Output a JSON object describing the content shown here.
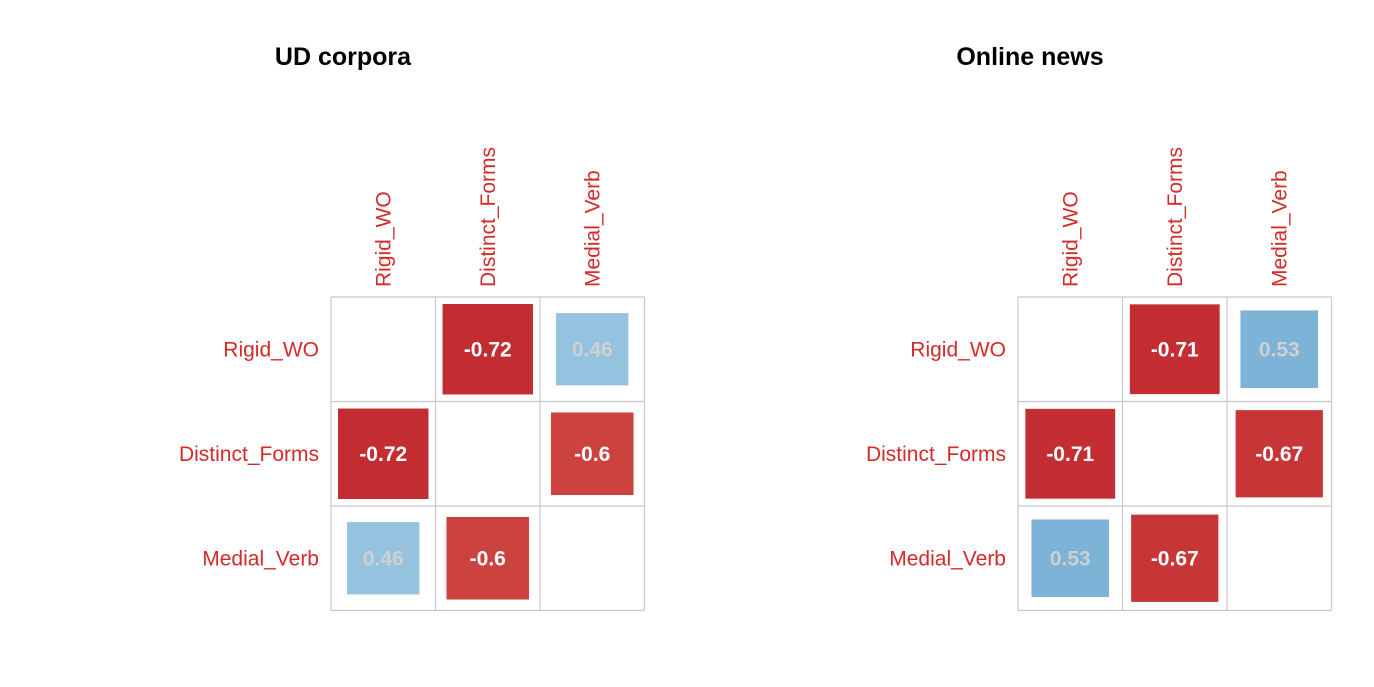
{
  "chart_data": [
    {
      "type": "heatmap",
      "title": "UD corpora",
      "variables": [
        "Rigid_WO",
        "Distinct_Forms",
        "Medial_Verb"
      ],
      "matrix": [
        [
          null,
          -0.72,
          0.46
        ],
        [
          -0.72,
          null,
          -0.6
        ],
        [
          0.46,
          -0.6,
          null
        ]
      ],
      "value_labels": [
        [
          "",
          "-0.72",
          "0.46"
        ],
        [
          "-0.72",
          "",
          "-0.6"
        ],
        [
          "0.46",
          "-0.6",
          ""
        ]
      ],
      "range": [
        -1,
        1
      ],
      "diagonal_shown": false
    },
    {
      "type": "heatmap",
      "title": "Online news",
      "variables": [
        "Rigid_WO",
        "Distinct_Forms",
        "Medial_Verb"
      ],
      "matrix": [
        [
          null,
          -0.71,
          0.53
        ],
        [
          -0.71,
          null,
          -0.67
        ],
        [
          0.53,
          -0.67,
          null
        ]
      ],
      "value_labels": [
        [
          "",
          "-0.71",
          "0.53"
        ],
        [
          "-0.71",
          "",
          "-0.67"
        ],
        [
          "0.53",
          "-0.67",
          ""
        ]
      ],
      "range": [
        -1,
        1
      ],
      "diagonal_shown": false
    }
  ],
  "colors": {
    "label_text": "#d42a2a",
    "negative_strong": "#c1272d",
    "negative_light": "#f4a582",
    "positive_strong": "#2b83ba",
    "positive_light": "#c6dff0",
    "value_text_on_dark": "#ffffff",
    "value_text_on_light": "#d0d0d0"
  }
}
